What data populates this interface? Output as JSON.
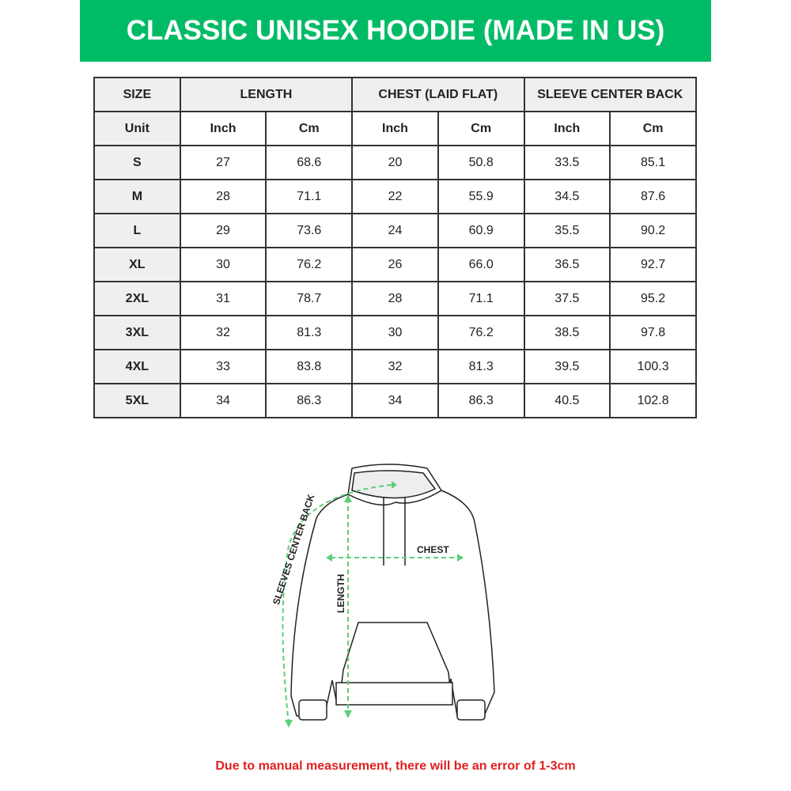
{
  "title": "CLASSIC UNISEX HOODIE (MADE IN US)",
  "table": {
    "groups": [
      "SIZE",
      "LENGTH",
      "CHEST (LAID FLAT)",
      "SLEEVE CENTER BACK"
    ],
    "units": [
      "Unit",
      "Inch",
      "Cm",
      "Inch",
      "Cm",
      "Inch",
      "Cm"
    ],
    "rows": [
      [
        "S",
        "27",
        "68.6",
        "20",
        "50.8",
        "33.5",
        "85.1"
      ],
      [
        "M",
        "28",
        "71.1",
        "22",
        "55.9",
        "34.5",
        "87.6"
      ],
      [
        "L",
        "29",
        "73.6",
        "24",
        "60.9",
        "35.5",
        "90.2"
      ],
      [
        "XL",
        "30",
        "76.2",
        "26",
        "66.0",
        "36.5",
        "92.7"
      ],
      [
        "2XL",
        "31",
        "78.7",
        "28",
        "71.1",
        "37.5",
        "95.2"
      ],
      [
        "3XL",
        "32",
        "81.3",
        "30",
        "76.2",
        "38.5",
        "97.8"
      ],
      [
        "4XL",
        "33",
        "83.8",
        "32",
        "81.3",
        "39.5",
        "100.3"
      ],
      [
        "5XL",
        "34",
        "86.3",
        "34",
        "86.3",
        "40.5",
        "102.8"
      ]
    ]
  },
  "diagram": {
    "chest": "CHEST",
    "length": "LENGTH",
    "sleeve": "SLEEVES CENTER BACK",
    "arrow_color": "#5ccf7a"
  },
  "note": "Due to manual measurement, there will be an error of 1-3cm",
  "colors": {
    "banner": "#00bb66",
    "note": "#e02020"
  }
}
